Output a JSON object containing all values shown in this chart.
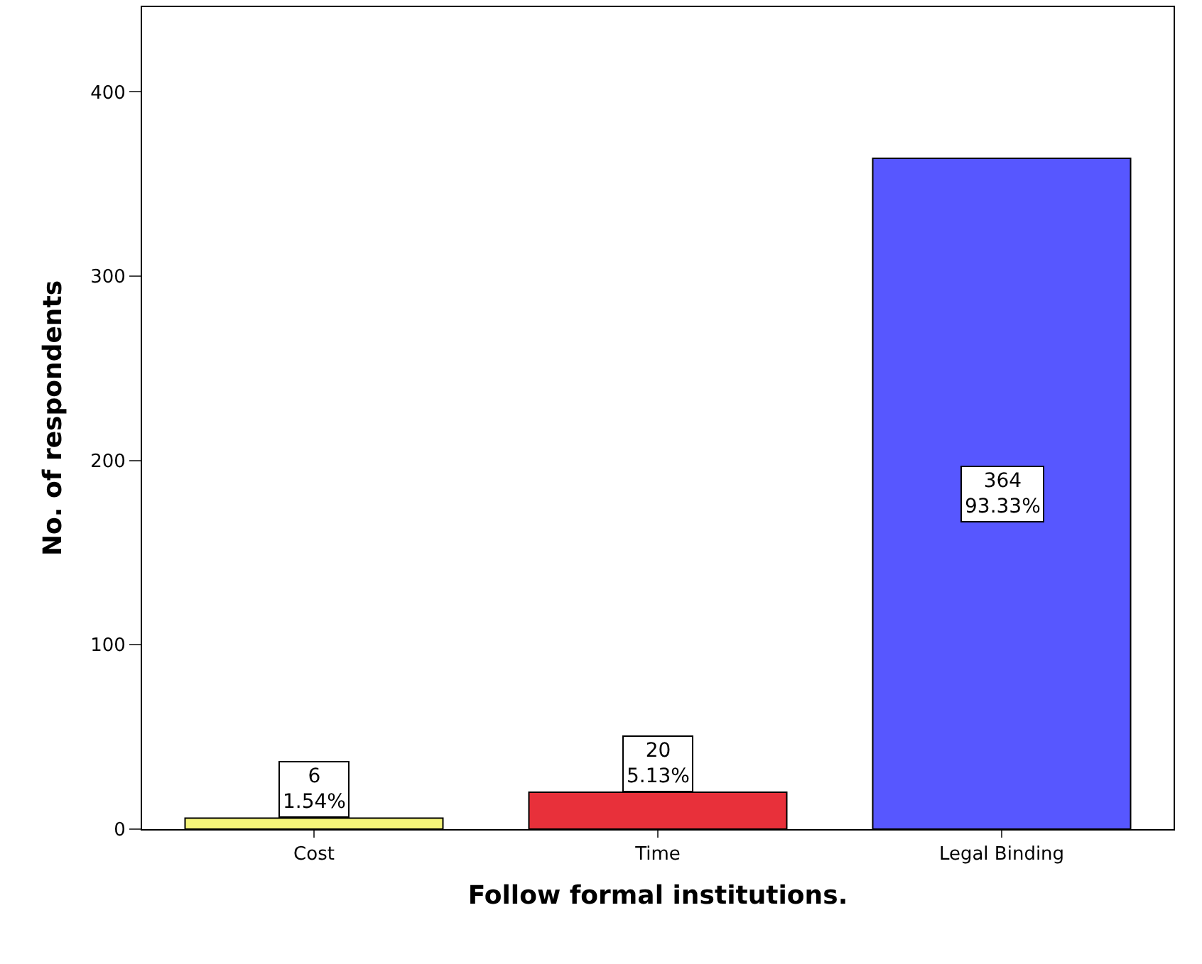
{
  "chart_data": {
    "type": "bar",
    "xlabel": "Follow formal institutions.",
    "ylabel": "No. of respondents",
    "categories": [
      "Cost",
      "Time",
      "Legal Binding"
    ],
    "values": [
      6,
      20,
      364
    ],
    "colors": [
      "#f5f57a",
      "#e8303a",
      "#5757ff"
    ],
    "value_labels": [
      "6\n1.54%",
      "20\n5.13%",
      "364\n93.33%"
    ],
    "ylim": [
      0,
      446
    ],
    "yticks": [
      0,
      100,
      200,
      300,
      400
    ]
  }
}
